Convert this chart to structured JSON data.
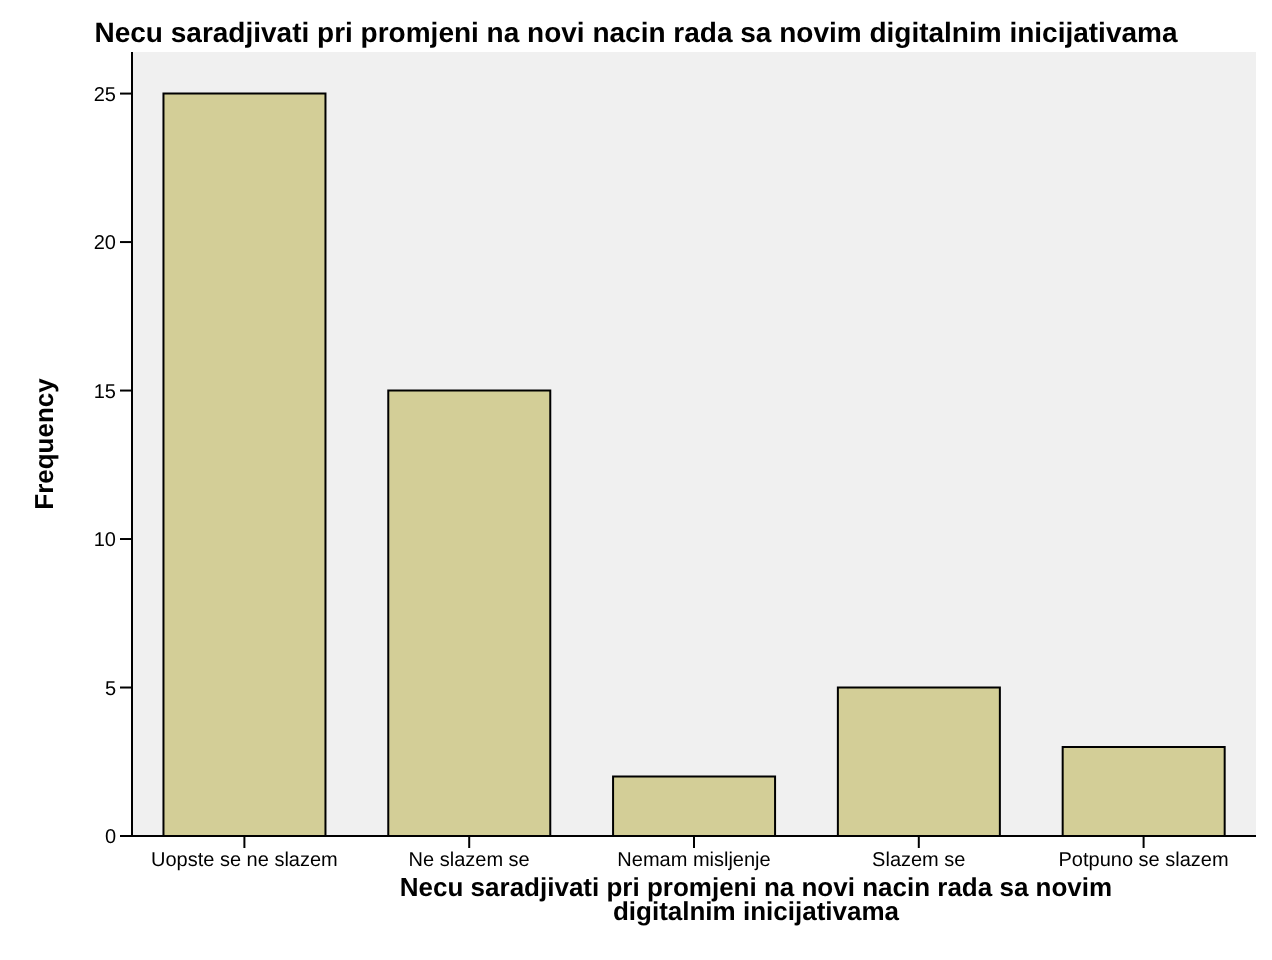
{
  "chart_data": {
    "type": "bar",
    "title": "Necu saradjivati pri promjeni na novi nacin rada sa novim digitalnim inicijativama",
    "xlabel": "Necu saradjivati pri promjeni na novi nacin rada sa novim digitalnim inicijativama",
    "ylabel": "Frequency",
    "categories": [
      "Uopste se ne slazem",
      "Ne slazem se",
      "Nemam misljenje",
      "Slazem se",
      "Potpuno se slazem"
    ],
    "values": [
      25,
      15,
      2,
      5,
      3
    ],
    "color": "#d3ce97",
    "ylim": [
      0,
      26.4
    ],
    "yticks": [
      0,
      5,
      10,
      15,
      20,
      25
    ],
    "grid": false
  }
}
